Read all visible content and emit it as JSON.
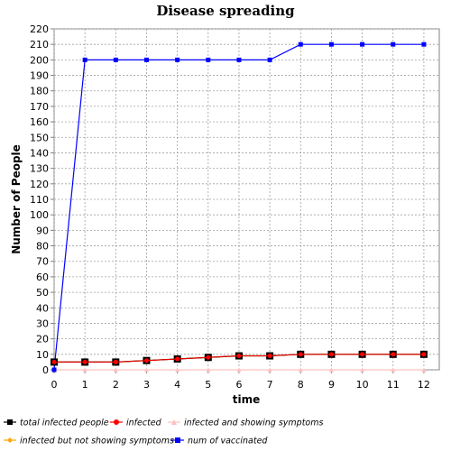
{
  "chart_data": {
    "type": "line",
    "title": "Disease spreading",
    "xlabel": "time",
    "ylabel": "Number of People",
    "x": [
      0,
      1,
      2,
      3,
      4,
      5,
      6,
      7,
      8,
      9,
      10,
      11,
      12
    ],
    "xlim": [
      0,
      12.5
    ],
    "ylim": [
      0,
      220
    ],
    "xticks": [
      0,
      1,
      2,
      3,
      4,
      5,
      6,
      7,
      8,
      9,
      10,
      11,
      12
    ],
    "yticks": [
      0,
      10,
      20,
      30,
      40,
      50,
      60,
      70,
      80,
      90,
      100,
      110,
      120,
      130,
      140,
      150,
      160,
      170,
      180,
      190,
      200,
      210,
      220
    ],
    "grid": true,
    "legend_position": "bottom",
    "series": [
      {
        "name": "total infected people",
        "color": "#000000",
        "marker": "square",
        "values": [
          5,
          5,
          5,
          6,
          7,
          8,
          9,
          9,
          10,
          10,
          10,
          10,
          10
        ]
      },
      {
        "name": "infected",
        "color": "#ff0000",
        "marker": "circle",
        "values": [
          5,
          5,
          5,
          6,
          7,
          8,
          9,
          9,
          10,
          10,
          10,
          10,
          10
        ]
      },
      {
        "name": "infected and showing symptoms",
        "color": "#ffc0c0",
        "marker": "triangle",
        "values": [
          0,
          0,
          0,
          0,
          0,
          0,
          0,
          0,
          0,
          0,
          0,
          0,
          0
        ]
      },
      {
        "name": "infected but not showing symptoms",
        "color": "#ffa500",
        "marker": "diamond",
        "values": [
          5,
          5,
          5,
          6,
          7,
          8,
          9,
          9,
          10,
          10,
          10,
          10,
          10
        ]
      },
      {
        "name": "num of vaccinated",
        "color": "#0000ff",
        "marker": "square",
        "values": [
          0,
          200,
          200,
          200,
          200,
          200,
          200,
          200,
          210,
          210,
          210,
          210,
          210
        ]
      }
    ]
  }
}
